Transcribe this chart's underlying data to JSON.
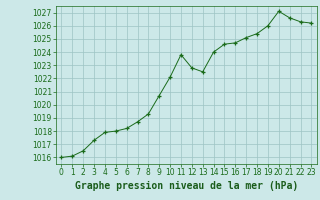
{
  "x": [
    0,
    1,
    2,
    3,
    4,
    5,
    6,
    7,
    8,
    9,
    10,
    11,
    12,
    13,
    14,
    15,
    16,
    17,
    18,
    19,
    20,
    21,
    22,
    23
  ],
  "y": [
    1016.0,
    1016.1,
    1016.5,
    1017.3,
    1017.9,
    1018.0,
    1018.2,
    1018.7,
    1019.3,
    1020.7,
    1022.1,
    1023.8,
    1022.8,
    1022.5,
    1024.0,
    1024.6,
    1024.7,
    1025.1,
    1025.4,
    1026.0,
    1027.1,
    1026.6,
    1026.3,
    1026.2
  ],
  "line_color": "#1a6b1a",
  "marker_color": "#1a6b1a",
  "bg_color": "#cce8e8",
  "grid_color": "#9dc4c4",
  "axis_label_color": "#1a5c1a",
  "tick_color": "#1a6b1a",
  "title": "Graphe pression niveau de la mer (hPa)",
  "ylim_min": 1015.5,
  "ylim_max": 1027.5,
  "ytick_min": 1016,
  "ytick_max": 1027,
  "xlim_min": -0.5,
  "xlim_max": 23.5,
  "xlabel_fontsize": 7,
  "tick_fontsize": 5.5
}
